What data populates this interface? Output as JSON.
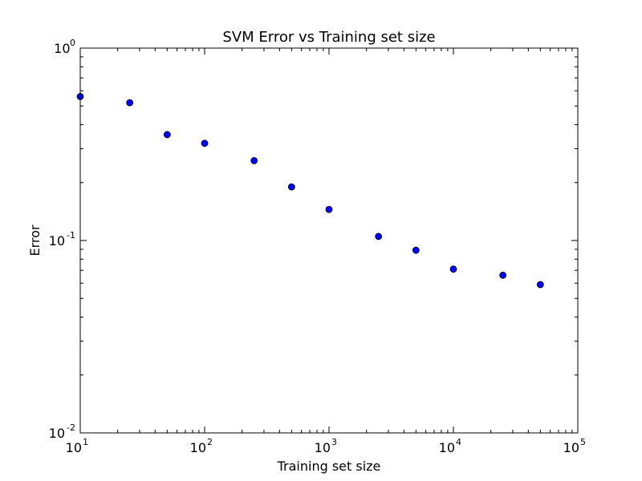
{
  "chart_data": {
    "type": "scatter",
    "title": "SVM Error vs Training set size",
    "xlabel": "Training set size",
    "ylabel": "Error",
    "x_scale": "log",
    "y_scale": "log",
    "xlim": [
      10,
      100000
    ],
    "ylim": [
      0.01,
      1
    ],
    "grid": false,
    "legend": "none",
    "marker_color": "#0000ff",
    "marker_edge_color": "#000000",
    "x_ticks": [
      {
        "base": "10",
        "exp": "1"
      },
      {
        "base": "10",
        "exp": "2"
      },
      {
        "base": "10",
        "exp": "3"
      },
      {
        "base": "10",
        "exp": "4"
      },
      {
        "base": "10",
        "exp": "5"
      }
    ],
    "y_ticks": [
      {
        "base": "10",
        "exp": "-2"
      },
      {
        "base": "10",
        "exp": "-1"
      },
      {
        "base": "10",
        "exp": "0"
      }
    ],
    "points": [
      {
        "x": 10,
        "y": 0.56
      },
      {
        "x": 25,
        "y": 0.52
      },
      {
        "x": 50,
        "y": 0.355
      },
      {
        "x": 100,
        "y": 0.32
      },
      {
        "x": 250,
        "y": 0.26
      },
      {
        "x": 500,
        "y": 0.19
      },
      {
        "x": 1000,
        "y": 0.145
      },
      {
        "x": 2500,
        "y": 0.105
      },
      {
        "x": 5000,
        "y": 0.089
      },
      {
        "x": 10000,
        "y": 0.071
      },
      {
        "x": 25000,
        "y": 0.066
      },
      {
        "x": 50000,
        "y": 0.059
      }
    ]
  }
}
